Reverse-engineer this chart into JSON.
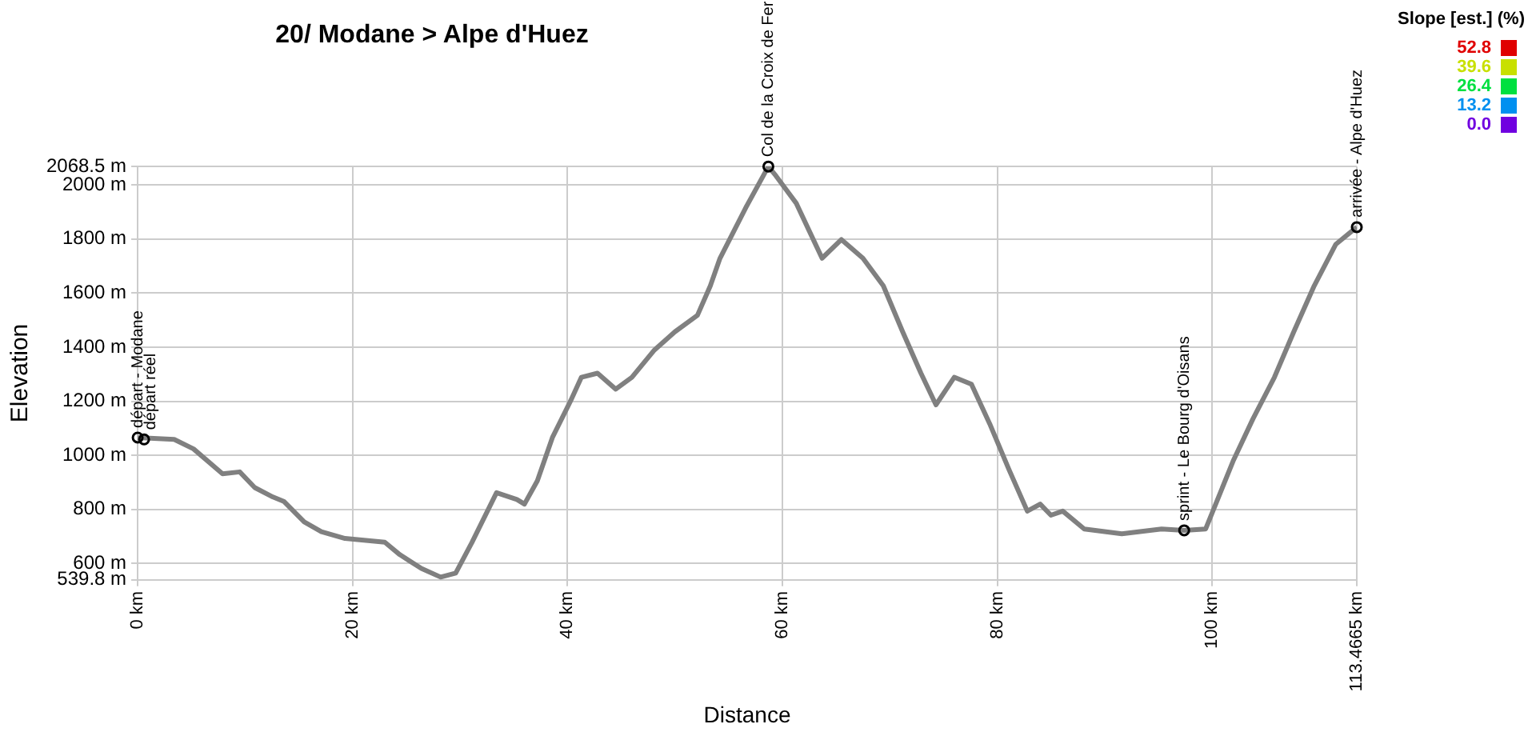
{
  "chart_data": {
    "type": "line",
    "title": "20/ Modane > Alpe d'Huez",
    "xlabel": "Distance",
    "ylabel": "Elevation",
    "clabel": "Slope [est.] (%)",
    "clim": [
      0,
      52.8
    ],
    "cticks": [
      {
        "value": 0,
        "label": "0.0"
      },
      13.2,
      26.4,
      39.6,
      52.8
    ],
    "x": [
      0,
      3.4,
      5.2,
      7.9,
      9.5,
      10.9,
      12.6,
      13.6,
      15.5,
      17.1,
      19.3,
      23,
      24.4,
      26.4,
      28.2,
      29.6,
      31.1,
      33.4,
      35.3,
      36,
      37.2,
      38.6,
      40.3,
      41.3,
      42.8,
      44.5,
      46,
      48.1,
      50,
      52.1,
      53.3,
      54.2,
      56.6,
      58.7,
      59.4,
      61.3,
      63.7,
      65.5,
      67.5,
      69.4,
      71.2,
      72.9,
      74.3,
      76,
      77.6,
      79.3,
      81.1,
      82.8,
      84,
      85,
      86.1,
      88.1,
      91.6,
      95.3,
      97.4,
      99.4,
      100.6,
      102,
      103.8,
      105.8,
      107.6,
      109.5,
      111.5,
      113.4665
    ],
    "series": [
      {
        "color": "#808080",
        "values": [
          1066,
          1059,
          1024,
          932,
          939,
          881,
          846,
          830,
          754,
          718,
          693,
          679,
          633,
          582,
          550,
          565,
          677,
          862,
          837,
          820,
          906,
          1066,
          1202,
          1289,
          1304,
          1245,
          1289,
          1390,
          1457,
          1518,
          1627,
          1729,
          1916,
          2068,
          2034,
          1932,
          1729,
          1798,
          1729,
          1627,
          1457,
          1304,
          1187,
          1289,
          1263,
          1117,
          947,
          794,
          820,
          779,
          794,
          728,
          710,
          728,
          723,
          728,
          846,
          983,
          1135,
          1289,
          1457,
          1627,
          1780,
          1844
        ]
      }
    ],
    "xlim": [
      0,
      113.4665
    ],
    "xticks": [
      {
        "value": 0,
        "label": "0 km"
      },
      {
        "value": 20,
        "label": "20 km"
      },
      {
        "value": 40,
        "label": "40 km"
      },
      {
        "value": 60,
        "label": "60 km"
      },
      {
        "value": 80,
        "label": "80 km"
      },
      {
        "value": 100,
        "label": "100 km"
      },
      {
        "value": 113.4665,
        "label": "113.4665 km"
      }
    ],
    "ylim": [
      539.8,
      2068.5
    ],
    "yticks": [
      {
        "value": 539.8,
        "label": "539.8 m"
      },
      {
        "value": 600,
        "label": "600 m"
      },
      {
        "value": 800,
        "label": "800 m"
      },
      {
        "value": 1000,
        "label": "1000 m"
      },
      {
        "value": 1200,
        "label": "1200 m"
      },
      {
        "value": 1400,
        "label": "1400 m"
      },
      {
        "value": 1600,
        "label": "1600 m"
      },
      {
        "value": 1800,
        "label": "1800 m"
      },
      {
        "value": 2000,
        "label": "2000 m"
      },
      {
        "value": 2068.5,
        "label": "2068.5 m"
      }
    ],
    "annotations": [
      {
        "text": "départ - Modane",
        "x": 0,
        "y": 1066
      },
      {
        "text": "départ réel",
        "x": 0.6,
        "y": 1059
      },
      {
        "text": "Col de la Croix de Fer",
        "x": 58.7,
        "y": 2068
      },
      {
        "text": "sprint - Le Bourg d'Oisans",
        "x": 97.4,
        "y": 723
      },
      {
        "text": "arrivée - Alpe d'Huez",
        "x": 113.4665,
        "y": 1844
      }
    ],
    "grid": true,
    "legend": false,
    "marker": "none",
    "line_style": "solid"
  }
}
